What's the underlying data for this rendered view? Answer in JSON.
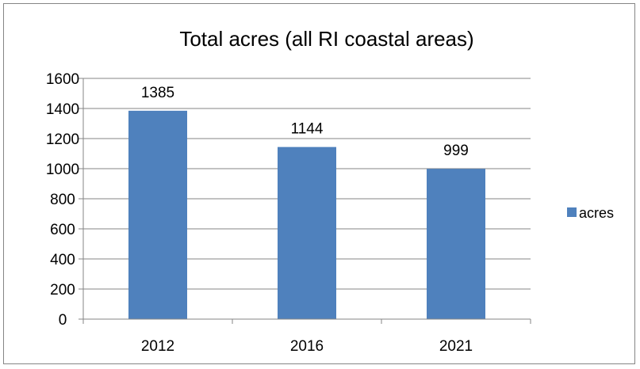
{
  "chart_data": {
    "type": "bar",
    "title": "Total acres (all RI coastal areas)",
    "categories": [
      "2012",
      "2016",
      "2021"
    ],
    "series": [
      {
        "name": "acres",
        "values": [
          1385,
          1144,
          999
        ],
        "color": "#4F81BD"
      }
    ],
    "data_labels": [
      "1385",
      "1144",
      "999"
    ],
    "ylim": [
      0,
      1600
    ],
    "yticks": [
      0,
      200,
      400,
      600,
      800,
      1000,
      1200,
      1400,
      1600
    ],
    "xlabel": "",
    "ylabel": "",
    "grid": true,
    "legend": {
      "position": "right",
      "label": "acres"
    },
    "colors": {
      "bar": "#4F81BD",
      "grid": "#868686",
      "axis": "#868686"
    }
  }
}
